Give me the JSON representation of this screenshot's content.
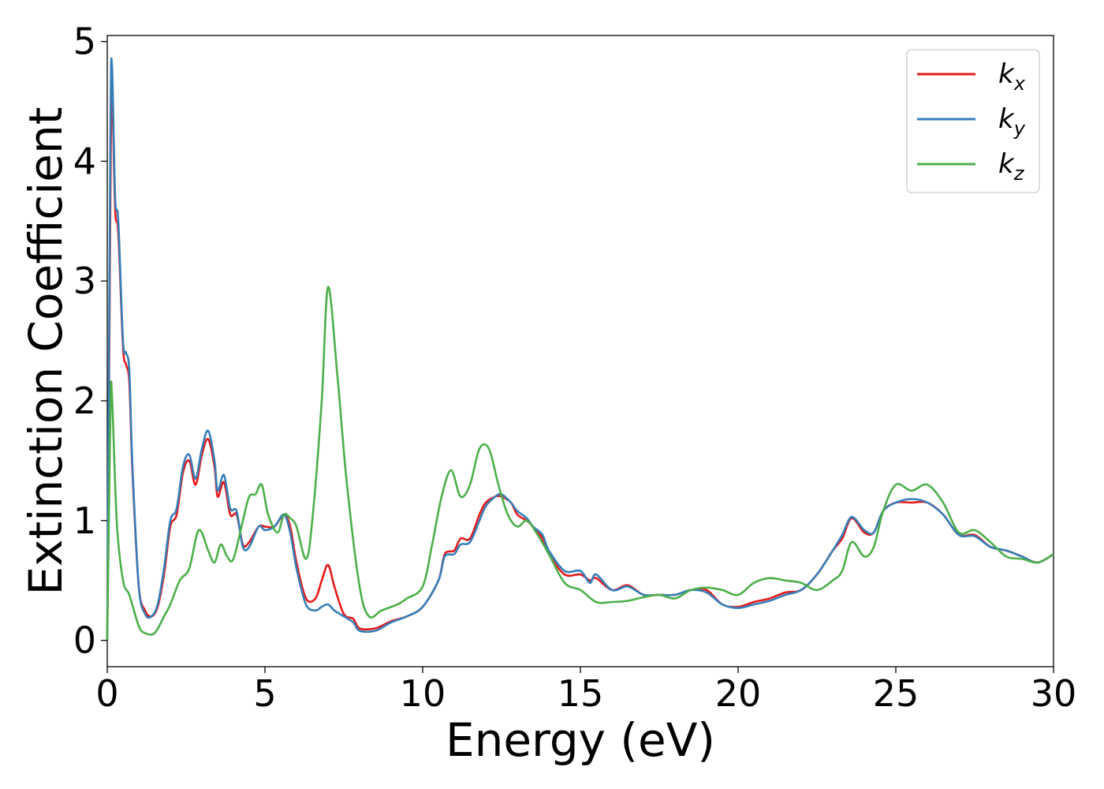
{
  "chart_data": {
    "type": "line",
    "title": "",
    "xlabel": "Energy (eV)",
    "ylabel": "Extinction Coefficient",
    "xlim": [
      0,
      30
    ],
    "ylim": [
      -0.22,
      5.05
    ],
    "xticks": [
      "0",
      "5",
      "10",
      "15",
      "20",
      "25",
      "30"
    ],
    "yticks": [
      "0",
      "1",
      "2",
      "3",
      "4",
      "5"
    ],
    "grid": false,
    "legend_position": "top-right",
    "series": [
      {
        "name": "k_x",
        "legend_base": "k",
        "legend_sub": "x",
        "color": "#e41a1c",
        "points": [
          [
            0,
            0
          ],
          [
            0.1,
            3.7
          ],
          [
            0.15,
            4.6
          ],
          [
            0.25,
            3.6
          ],
          [
            0.35,
            3.4
          ],
          [
            0.5,
            2.45
          ],
          [
            0.6,
            2.3
          ],
          [
            0.7,
            2.15
          ],
          [
            0.8,
            1.4
          ],
          [
            1,
            0.45
          ],
          [
            1.2,
            0.25
          ],
          [
            1.4,
            0.2
          ],
          [
            1.6,
            0.28
          ],
          [
            1.8,
            0.55
          ],
          [
            2,
            0.95
          ],
          [
            2.2,
            1.05
          ],
          [
            2.4,
            1.4
          ],
          [
            2.6,
            1.5
          ],
          [
            2.8,
            1.3
          ],
          [
            3,
            1.55
          ],
          [
            3.2,
            1.68
          ],
          [
            3.4,
            1.45
          ],
          [
            3.5,
            1.2
          ],
          [
            3.7,
            1.32
          ],
          [
            3.9,
            1.05
          ],
          [
            4.1,
            1.05
          ],
          [
            4.3,
            0.8
          ],
          [
            4.5,
            0.82
          ],
          [
            4.8,
            0.95
          ],
          [
            5,
            0.95
          ],
          [
            5.3,
            0.95
          ],
          [
            5.6,
            1.05
          ],
          [
            5.8,
            0.95
          ],
          [
            6,
            0.65
          ],
          [
            6.3,
            0.35
          ],
          [
            6.6,
            0.35
          ],
          [
            6.8,
            0.5
          ],
          [
            7,
            0.63
          ],
          [
            7.2,
            0.45
          ],
          [
            7.5,
            0.22
          ],
          [
            7.8,
            0.18
          ],
          [
            8,
            0.1
          ],
          [
            8.5,
            0.1
          ],
          [
            9,
            0.16
          ],
          [
            9.5,
            0.2
          ],
          [
            10,
            0.28
          ],
          [
            10.5,
            0.5
          ],
          [
            10.7,
            0.72
          ],
          [
            11,
            0.75
          ],
          [
            11.2,
            0.85
          ],
          [
            11.5,
            0.85
          ],
          [
            11.8,
            1.05
          ],
          [
            12,
            1.15
          ],
          [
            12.3,
            1.2
          ],
          [
            12.5,
            1.2
          ],
          [
            12.8,
            1.15
          ],
          [
            13,
            1.05
          ],
          [
            13.3,
            1.0
          ],
          [
            13.5,
            0.95
          ],
          [
            13.8,
            0.85
          ],
          [
            14,
            0.72
          ],
          [
            14.5,
            0.55
          ],
          [
            15,
            0.55
          ],
          [
            15.3,
            0.5
          ],
          [
            15.5,
            0.52
          ],
          [
            16,
            0.42
          ],
          [
            16.5,
            0.46
          ],
          [
            17,
            0.38
          ],
          [
            17.5,
            0.38
          ],
          [
            18,
            0.38
          ],
          [
            18.5,
            0.42
          ],
          [
            19,
            0.42
          ],
          [
            19.5,
            0.3
          ],
          [
            20,
            0.28
          ],
          [
            20.5,
            0.32
          ],
          [
            21,
            0.35
          ],
          [
            21.5,
            0.4
          ],
          [
            22,
            0.42
          ],
          [
            22.5,
            0.55
          ],
          [
            23,
            0.75
          ],
          [
            23.3,
            0.85
          ],
          [
            23.6,
            1.02
          ],
          [
            24,
            0.9
          ],
          [
            24.3,
            0.9
          ],
          [
            24.6,
            1.08
          ],
          [
            25,
            1.15
          ],
          [
            25.5,
            1.15
          ],
          [
            26,
            1.15
          ],
          [
            26.5,
            1.05
          ],
          [
            27,
            0.88
          ],
          [
            27.5,
            0.88
          ],
          [
            28,
            0.78
          ],
          [
            28.5,
            0.75
          ],
          [
            29,
            0.7
          ],
          [
            29.5,
            0.65
          ],
          [
            30,
            0.72
          ]
        ]
      },
      {
        "name": "k_y",
        "legend_base": "k",
        "legend_sub": "y",
        "color": "#377eb8",
        "points": [
          [
            0,
            0
          ],
          [
            0.1,
            4.2
          ],
          [
            0.15,
            4.8
          ],
          [
            0.25,
            3.7
          ],
          [
            0.35,
            3.5
          ],
          [
            0.5,
            2.5
          ],
          [
            0.6,
            2.4
          ],
          [
            0.7,
            2.25
          ],
          [
            0.8,
            1.45
          ],
          [
            1,
            0.45
          ],
          [
            1.2,
            0.22
          ],
          [
            1.4,
            0.2
          ],
          [
            1.6,
            0.3
          ],
          [
            1.8,
            0.6
          ],
          [
            2,
            1.0
          ],
          [
            2.2,
            1.1
          ],
          [
            2.4,
            1.45
          ],
          [
            2.6,
            1.55
          ],
          [
            2.8,
            1.35
          ],
          [
            3,
            1.6
          ],
          [
            3.2,
            1.75
          ],
          [
            3.4,
            1.5
          ],
          [
            3.5,
            1.25
          ],
          [
            3.7,
            1.38
          ],
          [
            3.9,
            1.1
          ],
          [
            4.1,
            1.08
          ],
          [
            4.3,
            0.78
          ],
          [
            4.5,
            0.78
          ],
          [
            4.8,
            0.95
          ],
          [
            5,
            0.92
          ],
          [
            5.3,
            0.95
          ],
          [
            5.6,
            1.05
          ],
          [
            5.8,
            0.9
          ],
          [
            6,
            0.6
          ],
          [
            6.3,
            0.3
          ],
          [
            6.6,
            0.25
          ],
          [
            6.8,
            0.28
          ],
          [
            7,
            0.3
          ],
          [
            7.2,
            0.25
          ],
          [
            7.5,
            0.2
          ],
          [
            7.8,
            0.15
          ],
          [
            8,
            0.08
          ],
          [
            8.5,
            0.08
          ],
          [
            9,
            0.15
          ],
          [
            9.5,
            0.2
          ],
          [
            10,
            0.28
          ],
          [
            10.5,
            0.5
          ],
          [
            10.7,
            0.7
          ],
          [
            11,
            0.72
          ],
          [
            11.2,
            0.8
          ],
          [
            11.5,
            0.82
          ],
          [
            11.8,
            1.0
          ],
          [
            12,
            1.12
          ],
          [
            12.3,
            1.2
          ],
          [
            12.5,
            1.22
          ],
          [
            12.8,
            1.15
          ],
          [
            13,
            1.08
          ],
          [
            13.3,
            1.02
          ],
          [
            13.5,
            0.95
          ],
          [
            13.8,
            0.88
          ],
          [
            14,
            0.75
          ],
          [
            14.5,
            0.58
          ],
          [
            15,
            0.58
          ],
          [
            15.3,
            0.48
          ],
          [
            15.5,
            0.55
          ],
          [
            16,
            0.42
          ],
          [
            16.5,
            0.45
          ],
          [
            17,
            0.38
          ],
          [
            17.5,
            0.38
          ],
          [
            18,
            0.38
          ],
          [
            18.5,
            0.42
          ],
          [
            19,
            0.4
          ],
          [
            19.5,
            0.3
          ],
          [
            20,
            0.27
          ],
          [
            20.5,
            0.3
          ],
          [
            21,
            0.33
          ],
          [
            21.5,
            0.38
          ],
          [
            22,
            0.42
          ],
          [
            22.5,
            0.55
          ],
          [
            23,
            0.75
          ],
          [
            23.3,
            0.88
          ],
          [
            23.6,
            1.03
          ],
          [
            24,
            0.92
          ],
          [
            24.3,
            0.9
          ],
          [
            24.6,
            1.08
          ],
          [
            25,
            1.15
          ],
          [
            25.5,
            1.18
          ],
          [
            26,
            1.15
          ],
          [
            26.5,
            1.05
          ],
          [
            27,
            0.88
          ],
          [
            27.5,
            0.87
          ],
          [
            28,
            0.78
          ],
          [
            28.5,
            0.75
          ],
          [
            29,
            0.7
          ],
          [
            29.5,
            0.65
          ],
          [
            30,
            0.72
          ]
        ]
      },
      {
        "name": "k_z",
        "legend_base": "k",
        "legend_sub": "z",
        "color": "#4daf4a",
        "points": [
          [
            0,
            0
          ],
          [
            0.1,
            1.9
          ],
          [
            0.15,
            2.05
          ],
          [
            0.3,
            1.0
          ],
          [
            0.5,
            0.5
          ],
          [
            0.7,
            0.38
          ],
          [
            1,
            0.12
          ],
          [
            1.2,
            0.06
          ],
          [
            1.5,
            0.06
          ],
          [
            1.8,
            0.2
          ],
          [
            2,
            0.3
          ],
          [
            2.3,
            0.5
          ],
          [
            2.6,
            0.6
          ],
          [
            2.9,
            0.92
          ],
          [
            3.2,
            0.75
          ],
          [
            3.4,
            0.65
          ],
          [
            3.6,
            0.8
          ],
          [
            3.8,
            0.7
          ],
          [
            4,
            0.68
          ],
          [
            4.3,
            1.0
          ],
          [
            4.5,
            1.2
          ],
          [
            4.7,
            1.22
          ],
          [
            4.9,
            1.3
          ],
          [
            5.1,
            1.05
          ],
          [
            5.4,
            0.9
          ],
          [
            5.6,
            1.05
          ],
          [
            5.8,
            1.02
          ],
          [
            6,
            0.95
          ],
          [
            6.3,
            0.68
          ],
          [
            6.5,
            1.0
          ],
          [
            6.8,
            2.0
          ],
          [
            7,
            2.95
          ],
          [
            7.3,
            2.2
          ],
          [
            7.6,
            1.3
          ],
          [
            8,
            0.45
          ],
          [
            8.3,
            0.2
          ],
          [
            8.7,
            0.25
          ],
          [
            9.2,
            0.3
          ],
          [
            9.5,
            0.35
          ],
          [
            10,
            0.45
          ],
          [
            10.3,
            0.8
          ],
          [
            10.6,
            1.2
          ],
          [
            10.9,
            1.42
          ],
          [
            11.2,
            1.2
          ],
          [
            11.5,
            1.3
          ],
          [
            11.8,
            1.6
          ],
          [
            12.1,
            1.6
          ],
          [
            12.4,
            1.3
          ],
          [
            12.7,
            1.05
          ],
          [
            13,
            0.95
          ],
          [
            13.3,
            1.0
          ],
          [
            13.6,
            0.9
          ],
          [
            14,
            0.72
          ],
          [
            14.5,
            0.48
          ],
          [
            15,
            0.42
          ],
          [
            15.5,
            0.32
          ],
          [
            16,
            0.32
          ],
          [
            16.5,
            0.33
          ],
          [
            17,
            0.36
          ],
          [
            17.5,
            0.38
          ],
          [
            18,
            0.35
          ],
          [
            18.5,
            0.42
          ],
          [
            19,
            0.44
          ],
          [
            19.5,
            0.42
          ],
          [
            20,
            0.38
          ],
          [
            20.5,
            0.48
          ],
          [
            21,
            0.52
          ],
          [
            21.5,
            0.5
          ],
          [
            22,
            0.48
          ],
          [
            22.5,
            0.42
          ],
          [
            23,
            0.5
          ],
          [
            23.3,
            0.58
          ],
          [
            23.6,
            0.82
          ],
          [
            24,
            0.7
          ],
          [
            24.3,
            0.78
          ],
          [
            24.6,
            1.08
          ],
          [
            25,
            1.3
          ],
          [
            25.5,
            1.25
          ],
          [
            26,
            1.3
          ],
          [
            26.5,
            1.15
          ],
          [
            27,
            0.9
          ],
          [
            27.5,
            0.92
          ],
          [
            28,
            0.82
          ],
          [
            28.5,
            0.7
          ],
          [
            29,
            0.68
          ],
          [
            29.5,
            0.65
          ],
          [
            30,
            0.72
          ]
        ]
      }
    ]
  }
}
